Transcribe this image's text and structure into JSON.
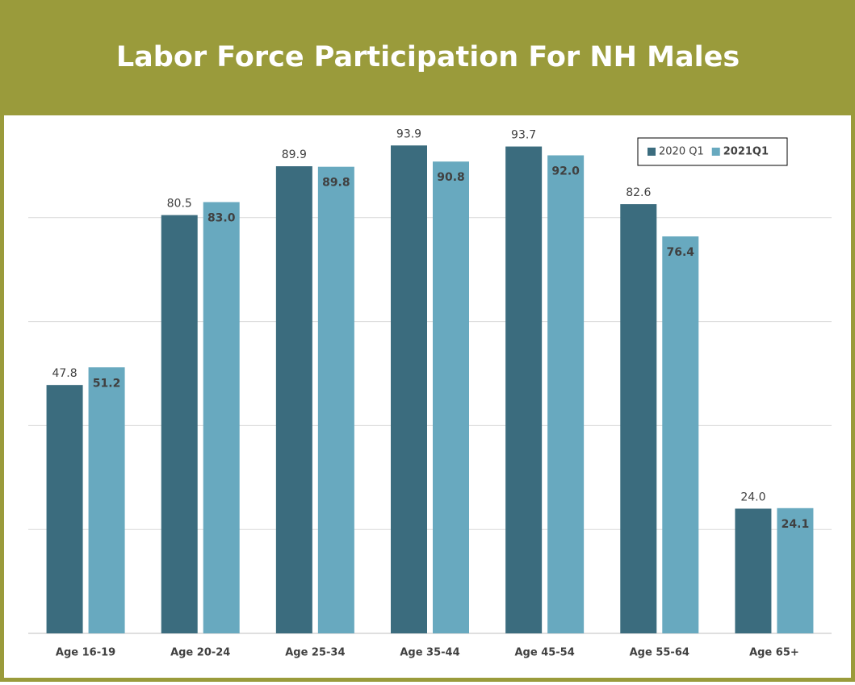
{
  "chart_data": {
    "type": "bar",
    "title": "Labor Force Participation For NH Males",
    "categories": [
      "Age 16-19",
      "Age 20-24",
      "Age 25-34",
      "Age 35-44",
      "Age 45-54",
      "Age 55-64",
      "Age 65+"
    ],
    "series": [
      {
        "name": "2020 Q1",
        "color": "#3b6c7e",
        "values": [
          47.8,
          80.5,
          89.9,
          93.9,
          93.7,
          82.6,
          24.0
        ],
        "value_labels": [
          "47.8",
          "80.5",
          "89.9",
          "93.9",
          "93.7",
          "82.6",
          "24.0"
        ]
      },
      {
        "name": "2021Q1",
        "color": "#68a9bf",
        "values": [
          51.2,
          83.0,
          89.8,
          90.8,
          92.0,
          76.4,
          24.1
        ],
        "value_labels": [
          "51.2",
          "83.0",
          "89.8",
          "90.8",
          "92.0",
          "76.4",
          "24.1"
        ]
      }
    ],
    "ylim": [
      0,
      100
    ],
    "yticks": [
      0,
      20,
      40,
      60,
      80
    ],
    "grid": true,
    "legend": "top-right"
  }
}
